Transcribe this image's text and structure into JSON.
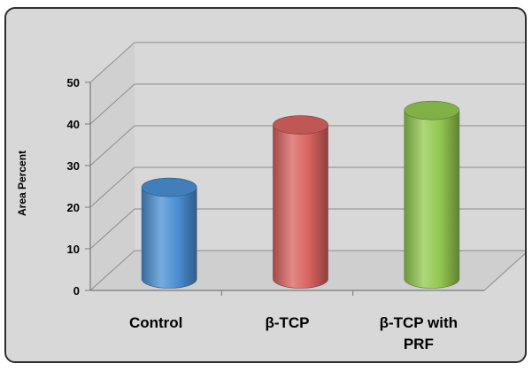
{
  "chart_data": {
    "type": "bar",
    "style": "3d-cylinder",
    "title": "",
    "xlabel": "",
    "ylabel": "Area Percent",
    "ylim": [
      0,
      50
    ],
    "yticks": [
      0,
      10,
      20,
      30,
      40,
      50
    ],
    "categories": [
      "Control",
      "β-TCP",
      "β-TCP with PRF"
    ],
    "category_label_lines": [
      [
        "Control"
      ],
      [
        "β-TCP"
      ],
      [
        "β-TCP with",
        "PRF"
      ]
    ],
    "values": [
      22,
      37,
      40.5
    ],
    "colors": [
      "#4a8fd3",
      "#d96360",
      "#93c84f"
    ],
    "grid": true,
    "legend": "none"
  }
}
